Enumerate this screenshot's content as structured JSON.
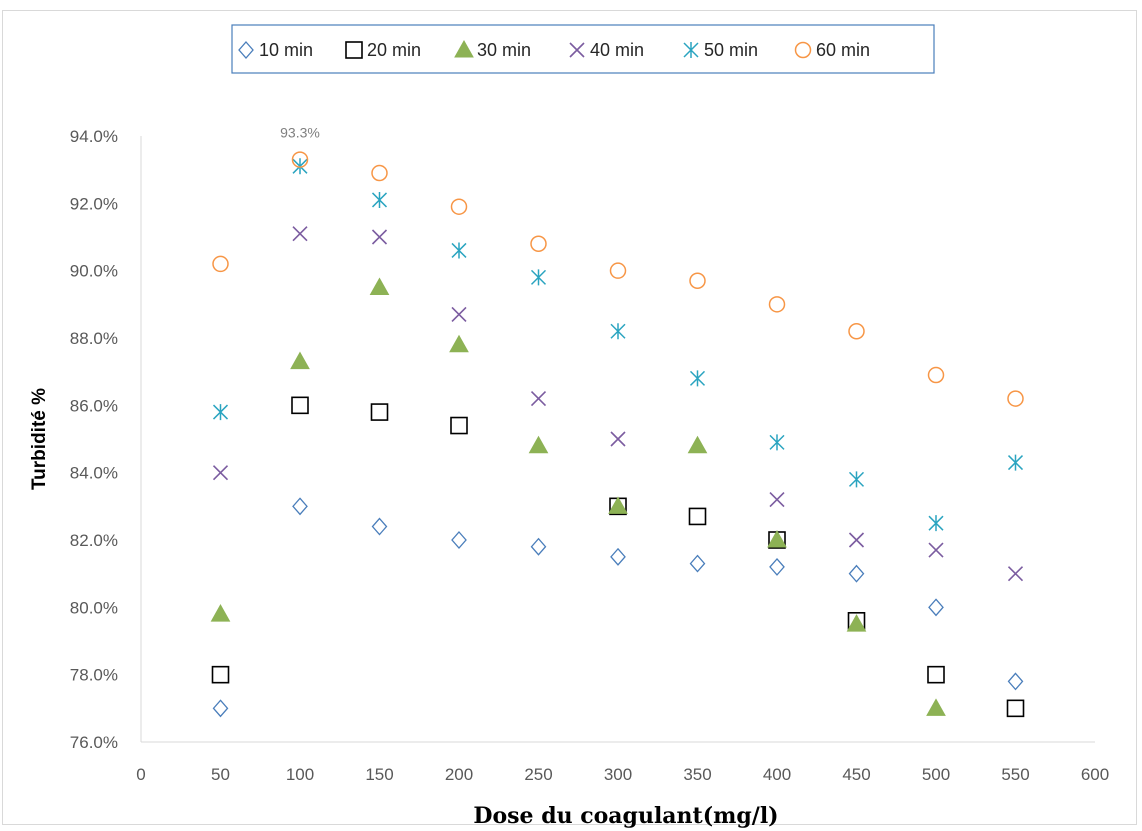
{
  "chart_data": {
    "type": "scatter",
    "title": "",
    "xlabel": "Dose du coagulant(mg/l)",
    "ylabel": "Turbidité %",
    "xlim": [
      0,
      600
    ],
    "ylim": [
      76.0,
      94.0
    ],
    "x_ticks": [
      "0",
      "50",
      "100",
      "150",
      "200",
      "250",
      "300",
      "350",
      "400",
      "450",
      "500",
      "550",
      "600"
    ],
    "y_ticks": [
      "76.0%",
      "78.0%",
      "80.0%",
      "82.0%",
      "84.0%",
      "86.0%",
      "88.0%",
      "90.0%",
      "92.0%",
      "94.0%"
    ],
    "grid": false,
    "legend_position": "top",
    "x": [
      50,
      100,
      150,
      200,
      250,
      300,
      350,
      400,
      450,
      500,
      550
    ],
    "series": [
      {
        "name": "10 min",
        "marker": "diamond",
        "color": "#4a7ebb",
        "values": [
          77.0,
          83.0,
          82.4,
          82.0,
          81.8,
          81.5,
          81.3,
          81.2,
          81.0,
          80.0,
          77.8
        ]
      },
      {
        "name": "20 min",
        "marker": "square",
        "color": "#000000",
        "values": [
          78.0,
          86.0,
          85.8,
          85.4,
          null,
          83.0,
          82.7,
          82.0,
          79.6,
          78.0,
          77.0
        ]
      },
      {
        "name": "30 min",
        "marker": "triangle",
        "color": "#8db255",
        "values": [
          79.8,
          87.3,
          89.5,
          87.8,
          84.8,
          83.0,
          84.8,
          82.0,
          79.5,
          77.0,
          null
        ]
      },
      {
        "name": "40 min",
        "marker": "x",
        "color": "#7b5ca0",
        "values": [
          84.0,
          91.1,
          91.0,
          88.7,
          86.2,
          85.0,
          null,
          83.2,
          82.0,
          81.7,
          81.0
        ]
      },
      {
        "name": "50 min",
        "marker": "star",
        "color": "#2aa4c0",
        "values": [
          85.8,
          93.1,
          92.1,
          90.6,
          89.8,
          88.2,
          86.8,
          84.9,
          83.8,
          82.5,
          84.3
        ]
      },
      {
        "name": "60 min",
        "marker": "circle",
        "color": "#f79646",
        "values": [
          90.2,
          93.3,
          92.9,
          91.9,
          90.8,
          90.0,
          89.7,
          89.0,
          88.2,
          86.9,
          86.2
        ]
      }
    ],
    "annotations": [
      {
        "text": "93.3%",
        "x": 100,
        "y": 93.3,
        "series": "60 min"
      }
    ]
  }
}
